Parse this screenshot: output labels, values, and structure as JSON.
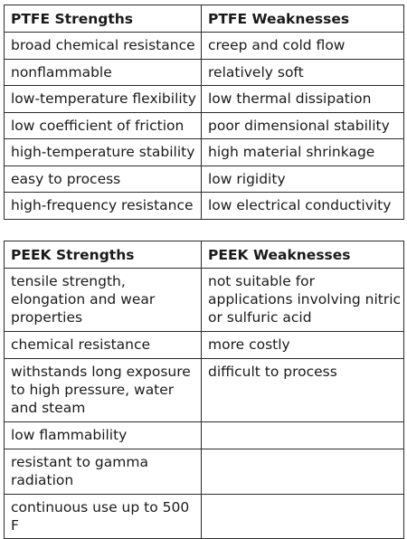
{
  "ptfe": {
    "headers": {
      "strengths": "PTFE Strengths",
      "weaknesses": "PTFE Weaknesses"
    },
    "rows": [
      {
        "strength": "broad chemical resistance",
        "weakness": "creep and cold flow"
      },
      {
        "strength": "nonflammable",
        "weakness": "relatively soft"
      },
      {
        "strength": "low-temperature flexibility",
        "weakness": "low thermal dissipation"
      },
      {
        "strength": "low coefficient of friction",
        "weakness": "poor dimensional stability"
      },
      {
        "strength": "high-temperature stability",
        "weakness": "high material shrinkage"
      },
      {
        "strength": "easy to process",
        "weakness": "low rigidity"
      },
      {
        "strength": "high-frequency resistance",
        "weakness": "low electrical conductivity"
      }
    ]
  },
  "peek": {
    "headers": {
      "strengths": "PEEK Strengths",
      "weaknesses": "PEEK Weaknesses"
    },
    "rows": [
      {
        "strength": "tensile strength, elongation and wear properties",
        "weakness": "not suitable for applications involving nitric or sulfuric acid"
      },
      {
        "strength": "chemical resistance",
        "weakness": "more costly"
      },
      {
        "strength": "withstands long exposure to high pressure, water and steam",
        "weakness": "difficult to process"
      },
      {
        "strength": "low flammability",
        "weakness": ""
      },
      {
        "strength": "resistant to gamma radiation",
        "weakness": ""
      },
      {
        "strength": "continuous use up to 500 F",
        "weakness": ""
      }
    ]
  }
}
